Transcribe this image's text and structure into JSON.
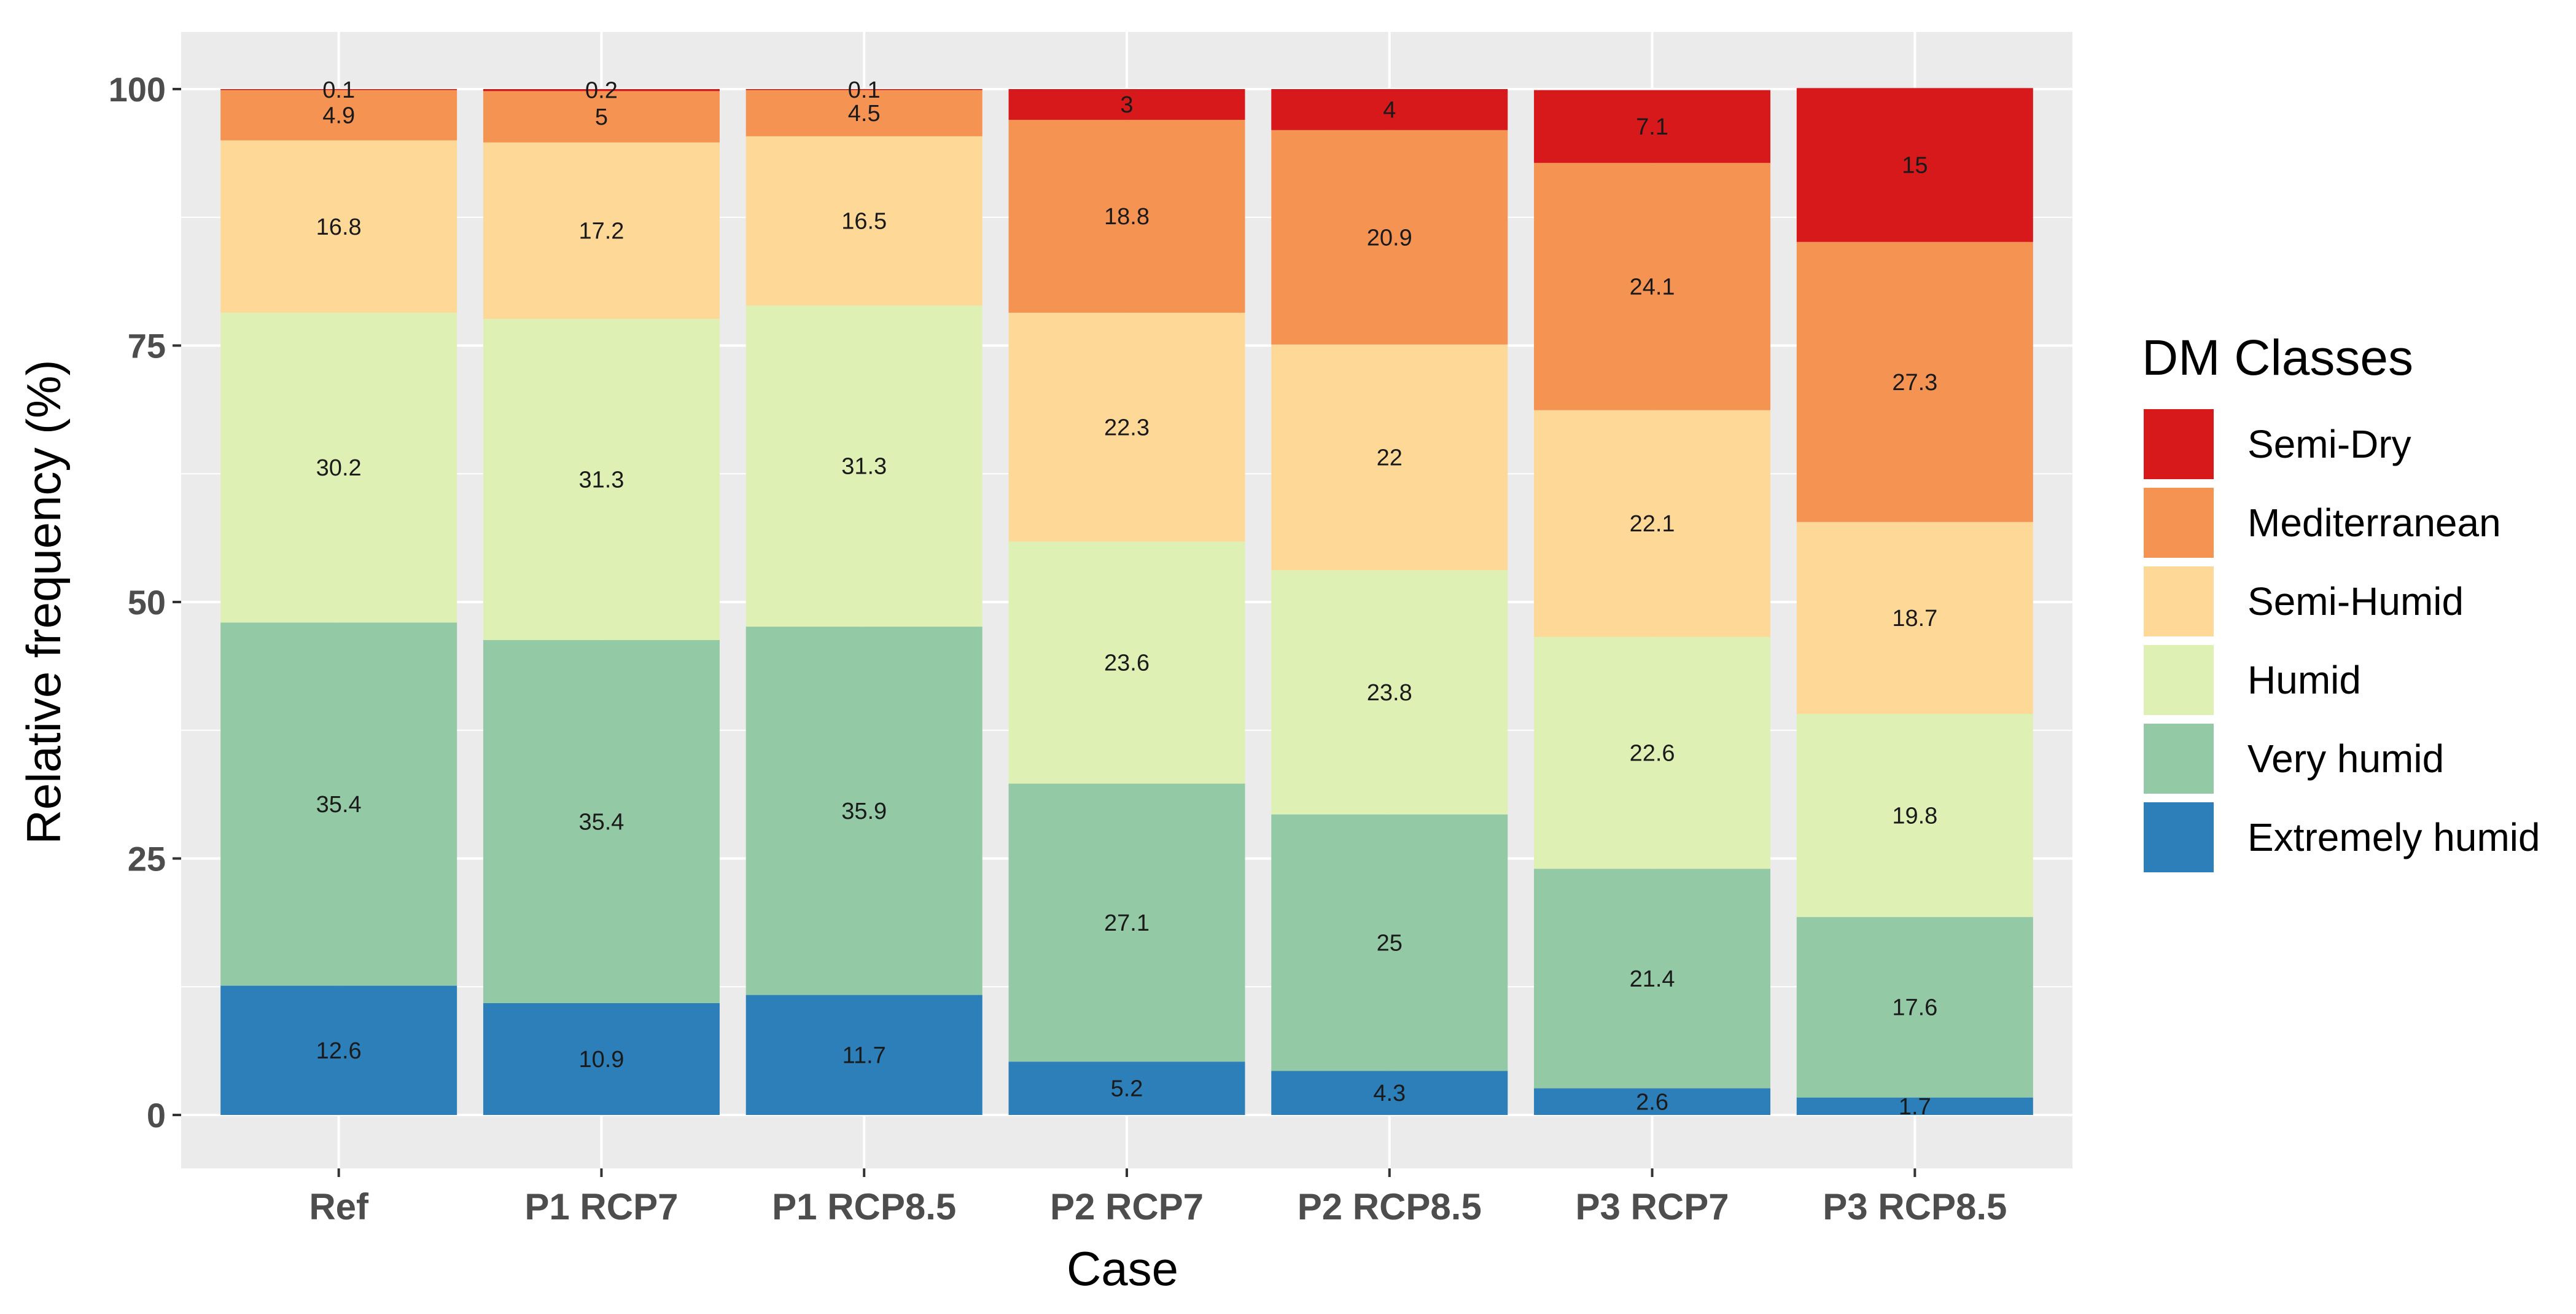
{
  "chart_data": {
    "type": "bar",
    "stacked": true,
    "title": "",
    "xlabel": "Case",
    "ylabel": "Relative frequency (%)",
    "ylim": [
      0,
      100
    ],
    "yticks": [
      0,
      25,
      50,
      75,
      100
    ],
    "grid": true,
    "legend_position": "right",
    "legend_title": "DM Classes",
    "categories": [
      "Ref",
      "P1 RCP7",
      "P1 RCP8.5",
      "P2 RCP7",
      "P2 RCP8.5",
      "P3 RCP7",
      "P3 RCP8.5"
    ],
    "series": [
      {
        "name": "Extremely humid",
        "color": "#2c7fb8",
        "values": [
          12.6,
          10.9,
          11.7,
          5.2,
          4.3,
          2.6,
          1.7
        ],
        "labels": [
          "12.6",
          "10.9",
          "11.7",
          "5.2",
          "4.3",
          "2.6",
          "1.7"
        ]
      },
      {
        "name": "Very humid",
        "color": "#93c9a5",
        "values": [
          35.4,
          35.4,
          35.9,
          27.1,
          25,
          21.4,
          17.6
        ],
        "labels": [
          "35.4",
          "35.4",
          "35.9",
          "27.1",
          "25",
          "21.4",
          "17.6"
        ]
      },
      {
        "name": "Humid",
        "color": "#dff0b4",
        "values": [
          30.2,
          31.3,
          31.3,
          23.6,
          23.8,
          22.6,
          19.8
        ],
        "labels": [
          "30.2",
          "31.3",
          "31.3",
          "23.6",
          "23.8",
          "22.6",
          "19.8"
        ]
      },
      {
        "name": "Semi-Humid",
        "color": "#fed897",
        "values": [
          16.8,
          17.2,
          16.5,
          22.3,
          22,
          22.1,
          18.7
        ],
        "labels": [
          "16.8",
          "17.2",
          "16.5",
          "22.3",
          "22",
          "22.1",
          "18.7"
        ]
      },
      {
        "name": "Mediterranean",
        "color": "#f59353",
        "values": [
          4.9,
          5,
          4.5,
          18.8,
          20.9,
          24.1,
          27.3
        ],
        "labels": [
          "4.9",
          "5",
          "4.5",
          "18.8",
          "20.9",
          "24.1",
          "27.3"
        ]
      },
      {
        "name": "Semi-Dry",
        "color": "#d7191c",
        "values": [
          0.1,
          0.2,
          0.1,
          3,
          4,
          7.1,
          15
        ],
        "labels": [
          "0.1",
          "0.2",
          "0.1",
          "3",
          "4",
          "7.1",
          "15"
        ]
      }
    ],
    "legend_order": [
      "Semi-Dry",
      "Mediterranean",
      "Semi-Humid",
      "Humid",
      "Very humid",
      "Extremely humid"
    ]
  },
  "colors": {
    "panel_background": "#ebebeb",
    "grid_line": "#ffffff"
  }
}
